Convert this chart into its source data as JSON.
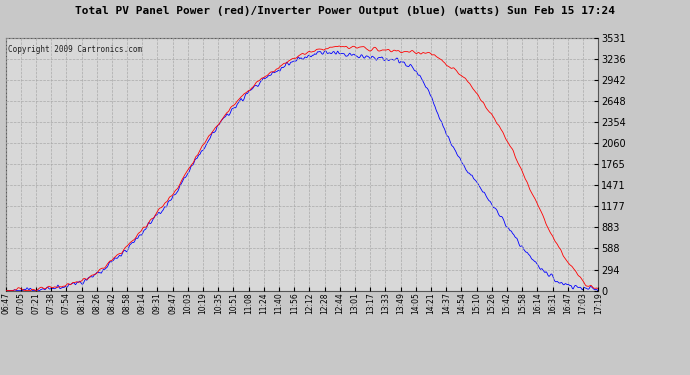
{
  "title": "Total PV Panel Power (red)/Inverter Power Output (blue) (watts) Sun Feb 15 17:24",
  "copyright": "Copyright 2009 Cartronics.com",
  "bg_color": "#c8c8c8",
  "plot_bg_color": "#d8d8d8",
  "grid_color": "#aaaaaa",
  "title_color": "#000000",
  "tick_label_color": "#000000",
  "red_line_color": "#ff0000",
  "blue_line_color": "#0000ff",
  "y_min": 0.0,
  "y_max": 3530.6,
  "y_ticks": [
    0.0,
    294.2,
    588.4,
    882.7,
    1176.9,
    1471.1,
    1765.3,
    2059.5,
    2353.8,
    2648.0,
    2942.2,
    3236.4,
    3530.6
  ],
  "x_labels": [
    "06:47",
    "07:05",
    "07:21",
    "07:38",
    "07:54",
    "08:10",
    "08:26",
    "08:42",
    "08:58",
    "09:14",
    "09:31",
    "09:47",
    "10:03",
    "10:19",
    "10:35",
    "10:51",
    "11:08",
    "11:24",
    "11:40",
    "11:56",
    "12:12",
    "12:28",
    "12:44",
    "13:01",
    "13:17",
    "13:33",
    "13:49",
    "14:05",
    "14:21",
    "14:37",
    "14:54",
    "15:10",
    "15:26",
    "15:42",
    "15:58",
    "16:14",
    "16:31",
    "16:47",
    "17:03",
    "17:19"
  ],
  "red_data": [
    5,
    10,
    18,
    35,
    80,
    140,
    250,
    420,
    620,
    850,
    1100,
    1350,
    1680,
    2020,
    2340,
    2580,
    2800,
    2980,
    3120,
    3250,
    3330,
    3380,
    3400,
    3390,
    3370,
    3350,
    3340,
    3320,
    3300,
    3150,
    3000,
    2750,
    2450,
    2100,
    1650,
    1200,
    750,
    400,
    150,
    30
  ],
  "blue_data": [
    3,
    8,
    15,
    30,
    70,
    125,
    230,
    400,
    590,
    820,
    1060,
    1310,
    1640,
    1980,
    2300,
    2540,
    2760,
    2950,
    3080,
    3200,
    3280,
    3320,
    3310,
    3280,
    3250,
    3230,
    3200,
    3050,
    2700,
    2200,
    1800,
    1500,
    1200,
    900,
    600,
    350,
    180,
    80,
    40,
    10
  ]
}
